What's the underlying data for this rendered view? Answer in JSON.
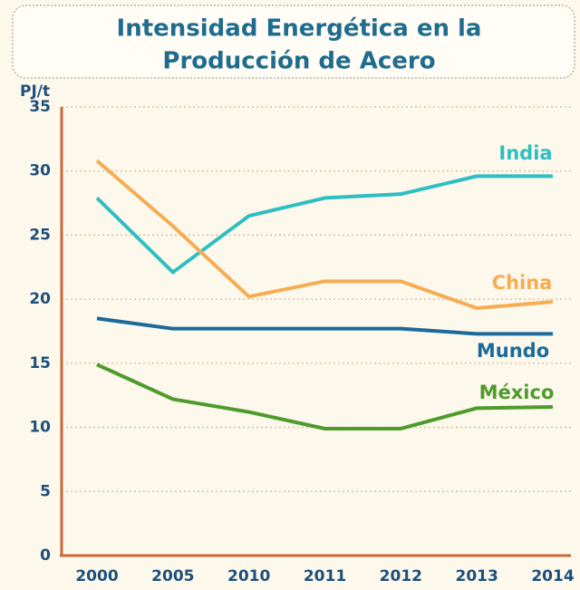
{
  "chart_data": {
    "type": "line",
    "title": [
      "Intensidad Energética en la",
      "Producción de Acero"
    ],
    "y_label": "PJ/t",
    "categories": [
      "2000",
      "2005",
      "2010",
      "2011",
      "2012",
      "2013",
      "2014"
    ],
    "series": [
      {
        "name": "India",
        "color": "#2fbfc2",
        "values": [
          27.9,
          22.1,
          26.5,
          27.9,
          28.2,
          29.6,
          29.6
        ]
      },
      {
        "name": "China",
        "color": "#f6ad52",
        "values": [
          30.8,
          25.7,
          20.2,
          21.4,
          21.4,
          19.3,
          19.8
        ]
      },
      {
        "name": "Mundo",
        "color": "#1c6a9b",
        "values": [
          18.5,
          17.7,
          17.7,
          17.7,
          17.7,
          17.3,
          17.3
        ]
      },
      {
        "name": "México",
        "color": "#4e9b2c",
        "values": [
          14.9,
          12.2,
          11.2,
          9.9,
          9.9,
          11.5,
          11.6
        ]
      }
    ],
    "ylim": [
      0,
      35
    ],
    "yticks": [
      0,
      5,
      10,
      15,
      20,
      25,
      30,
      35
    ],
    "grid": true
  }
}
